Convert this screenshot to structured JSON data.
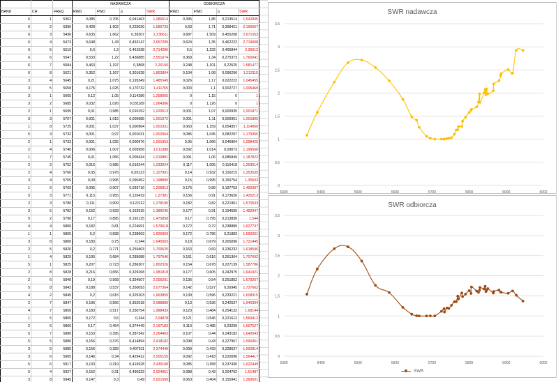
{
  "sheet": {
    "header1": [
      "",
      "",
      "",
      "NADAWCZA",
      "ODBIORCZA"
    ],
    "header2": [
      "BAND",
      "CH",
      "FREQ",
      "RWD",
      "FWD",
      "p",
      "SWR",
      "RWD",
      "FWD",
      "p",
      "SWR"
    ],
    "rows": [
      [
        "6",
        "1",
        "5362",
        "0,085",
        "0,705",
        "0,041463",
        "1,086514",
        "0,395",
        "1,85",
        "0,213514",
        "1,542935"
      ],
      [
        "6",
        "2",
        "5390",
        "0,428",
        "1,902",
        "0,225026",
        "1,580733",
        "0,63",
        "1,71",
        "0,368421",
        "2,166667"
      ],
      [
        "6",
        "3",
        "5436",
        "0,635",
        "1,662",
        "0,38207",
        "2,236611",
        "0,687",
        "1,509",
        "0,455268",
        "2,671553"
      ],
      [
        "6",
        "4",
        "5473",
        "0,648",
        "1,43",
        "0,453147",
        "2,657289",
        "0,624",
        "1,35",
        "0,462222",
        "2,719008"
      ],
      [
        "6",
        "5",
        "5510",
        "0,6",
        "1,3",
        "0,461538",
        "2,714286",
        "0,5",
        "1,232",
        "0,405844",
        "2,36612"
      ],
      [
        "6",
        "6",
        "5547",
        "0,533",
        "1,22",
        "0,436885",
        "2,551674",
        "0,369",
        "1,34",
        "0,275373",
        "1,760041"
      ],
      [
        "6",
        "7",
        "5584",
        "0,463",
        "1,197",
        "0,3868",
        "2,26156",
        "0,248",
        "1,101",
        "0,22525",
        "1,581477"
      ],
      [
        "6",
        "8",
        "5621",
        "0,352",
        "1,167",
        "0,301628",
        "1,863804",
        "0,104",
        "1,08",
        "0,096296",
        "1,213115"
      ],
      [
        "3",
        "4",
        "5645",
        "0,21",
        "1,075",
        "0,195349",
        "1,485549",
        "0,026",
        "1,17",
        "0,022222",
        "1,045455"
      ],
      [
        "3",
        "5",
        "5658",
        "0,175",
        "1,025",
        "0,170732",
        "1,411765",
        "0,003",
        "1,1",
        "0,002727",
        "1,005469"
      ],
      [
        "3",
        "1",
        "5665",
        "0,12",
        "1,05",
        "0,114286",
        "1,258065",
        "0",
        "1,15",
        "0",
        "1"
      ],
      [
        "3",
        "2",
        "5685",
        "0,032",
        "1,026",
        "0,031189",
        "1,064386",
        "0",
        "1,126",
        "0",
        "1"
      ],
      [
        "2",
        "1",
        "5695",
        "0,01",
        "0,985",
        "0,010152",
        "1,020513",
        "0,001",
        "1,07",
        "0,000935",
        "1,001871"
      ],
      [
        "3",
        "3",
        "5707",
        "0,001",
        "1,015",
        "0,000985",
        "1,001972",
        "0,001",
        "1,11",
        "0,000901",
        "1,001805"
      ],
      [
        "1",
        "8",
        "5725",
        "0,001",
        "1,037",
        "0,000964",
        "1,001931",
        "0,063",
        "1,159",
        "0,054357",
        "1,114960"
      ],
      [
        "5",
        "3",
        "5732",
        "0,001",
        "0,97",
        "0,001031",
        "1,002064",
        "0,086",
        "1,045",
        "0,082297",
        "1,179355"
      ],
      [
        "2",
        "1",
        "5733",
        "0,001",
        "1,025",
        "0,000976",
        "1,001953",
        "0,05",
        "1,066",
        "0,046904",
        "1,098425"
      ],
      [
        "2",
        "4",
        "5740",
        "0,006",
        "1,007",
        "0,005958",
        "1,011988",
        "0,092",
        "1,014",
        "0,09073",
        "1,199566"
      ],
      [
        "1",
        "7",
        "5745",
        "0,01",
        "1,056",
        "0,009434",
        "1,019881",
        "0,091",
        "1,06",
        "0,085849",
        "1,187822"
      ],
      [
        "2",
        "2",
        "5752",
        "0,016",
        "0,985",
        "0,016244",
        "1,033024",
        "0,117",
        "1,005",
        "0,116418",
        "1,263514"
      ],
      [
        "2",
        "4",
        "5760",
        "0,05",
        "0,976",
        "0,05123",
        "1,107991",
        "0,14",
        "0,932",
        "0,150215",
        "1,353535"
      ],
      [
        "3",
        "4",
        "5765",
        "0,09",
        "0,995",
        "0,090452",
        "1,198895",
        "0,15",
        "0,995",
        "0,150754",
        "1,35503"
      ],
      [
        "1",
        "6",
        "5769",
        "0,095",
        "0,907",
        "0,093716",
        "1,206813",
        "0,176",
        "0,89",
        "0,197753",
        "1,492997"
      ],
      [
        "5",
        "3",
        "5771",
        "0,115",
        "0,955",
        "0,120419",
        "1,27381",
        "0,156",
        "0,91",
        "0,173626",
        "1,420213"
      ],
      [
        "2",
        "3",
        "5780",
        "0,111",
        "0,909",
        "0,122112",
        "1,278195",
        "0,182",
        "0,82",
        "0,221951",
        "1,570533"
      ],
      [
        "3",
        "5",
        "5782",
        "0,152",
        "0,933",
        "0,162915",
        "1,389245",
        "0,177",
        "0,91",
        "0,194505",
        "1,482947"
      ],
      [
        "5",
        "2",
        "5790",
        "0,17",
        "0,895",
        "0,192125",
        "1,475858",
        "0,17",
        "0,795",
        "0,213836",
        "1,544"
      ],
      [
        "4",
        "4",
        "5800",
        "0,182",
        "0,81",
        "0,224691",
        "1,579618",
        "0,172",
        "0,72",
        "0,238889",
        "1,627737"
      ],
      [
        "1",
        "1",
        "5805",
        "0,2",
        "0,838",
        "0,238663",
        "1,626959",
        "0,172",
        "0,786",
        "0,21883",
        "1,560261"
      ],
      [
        "3",
        "8",
        "5806",
        "0,183",
        "0,75",
        "0,244",
        "1,645503",
        "0,18",
        "0,679",
        "0,265096",
        "1,721445"
      ],
      [
        "2",
        "5",
        "5820",
        "0,2",
        "0,771",
        "0,259403",
        "1,700525",
        "0,163",
        "0,69",
        "0,236232",
        "1,618596"
      ],
      [
        "1",
        "4",
        "5829",
        "0,195",
        "0,684",
        "0,285088",
        "1,797546",
        "0,161",
        "0,616",
        "0,261364",
        "1,707692"
      ],
      [
        "5",
        "1",
        "5825",
        "0,207",
        "0,723",
        "0,286307",
        "1,802326",
        "0,154",
        "0,678",
        "0,227139",
        "1,587786"
      ],
      [
        "2",
        "8",
        "5828",
        "0,216",
        "0,656",
        "0,329268",
        "1,981818",
        "0,177",
        "0,605",
        "0,242975",
        "1,641921"
      ],
      [
        "2",
        "6",
        "5840",
        "0,19",
        "0,568",
        "0,334507",
        "2,005291",
        "0,136",
        "0,54",
        "0,251852",
        "1,673267"
      ],
      [
        "5",
        "8",
        "5843",
        "0,188",
        "0,537",
        "0,350093",
        "2,077364",
        "0,142",
        "0,527",
        "0,26945",
        "1,737662"
      ],
      [
        "4",
        "2",
        "5845",
        "0,2",
        "0,615",
        "0,325203",
        "1,963855",
        "0,139",
        "0,596",
        "0,233221",
        "1,608315"
      ],
      [
        "2",
        "7",
        "5847",
        "0,196",
        "0,556",
        "0,352518",
        "2,088889",
        "0,13",
        "0,536",
        "0,242537",
        "1,640394"
      ],
      [
        "4",
        "7",
        "5850",
        "0,183",
        "0,517",
        "0,330754",
        "1,988439",
        "0,123",
        "0,484",
        "0,254132",
        "1,68144"
      ],
      [
        "1",
        "5",
        "5865",
        "0,172",
        "0,5",
        "0,344",
        "2,04878",
        "0,121",
        "0,546",
        "0,221612",
        "1,569412"
      ],
      [
        "2",
        "6",
        "5866",
        "0,17",
        "0,454",
        "0,374449",
        "2,197183",
        "0,113",
        "0,485",
        "0,23299",
        "1,607527"
      ],
      [
        "5",
        "7",
        "5880",
        "0,153",
        "0,395",
        "0,387342",
        "2,264463",
        "0,107",
        "0,44",
        "0,243182",
        "1,642643"
      ],
      [
        "5",
        "5",
        "5886",
        "0,156",
        "0,376",
        "0,414894",
        "2,418182",
        "0,098",
        "0,43",
        "0,227907",
        "1,590361"
      ],
      [
        "3",
        "5",
        "5885",
        "0,156",
        "0,383",
        "0,407311",
        "2,374449",
        "0,099",
        "0,433",
        "0,228637",
        "1,592814"
      ],
      [
        "3",
        "6",
        "5905",
        "0,146",
        "0,34",
        "0,429412",
        "2,505155",
        "0,092",
        "0,418",
        "0,220096",
        "1,564417"
      ],
      [
        "5",
        "6",
        "5917",
        "0,133",
        "0,319",
        "0,416928",
        "2,430108",
        "0,085",
        "0,358",
        "0,237430",
        "1,622449"
      ],
      [
        "5",
        "4",
        "5927",
        "0,152",
        "0,31",
        "0,490323",
        "2,924051",
        "0,088",
        "0,43",
        "0,204762",
        "1,51487"
      ],
      [
        "3",
        "8",
        "5945",
        "0,147",
        "0,3",
        "0,49",
        "2,921569",
        "0,063",
        "0,404",
        "0,155941",
        "1,369501"
      ]
    ]
  },
  "charts": [
    {
      "id": "chart1",
      "title": "SWR nadawcza",
      "color": "#ffc000",
      "show_legend": false,
      "x_ticks": [
        "5300",
        "5400",
        "5500",
        "5600",
        "5700",
        "5800",
        "5900",
        "6000"
      ],
      "y_ticks": [
        "0",
        "0,5",
        "1",
        "1,5",
        "2",
        "2,5",
        "3",
        "3,5"
      ]
    },
    {
      "id": "chart2",
      "title": "SWR odbiorcza",
      "color": "#9c4a12",
      "show_legend": true,
      "legend_label": "SWR",
      "x_ticks": [
        "5300",
        "5400",
        "5500",
        "5600",
        "5700",
        "5800",
        "5900",
        "6000"
      ],
      "y_ticks": [
        "0",
        "0,5",
        "1",
        "1,5",
        "2",
        "2,5",
        "3",
        "3,5"
      ]
    }
  ],
  "chart_data": [
    {
      "type": "scatter",
      "title": "SWR nadawcza",
      "xlabel": "",
      "ylabel": "",
      "xlim": [
        5300,
        6000
      ],
      "ylim": [
        0,
        3.5
      ],
      "grid": true,
      "x": [
        5362,
        5390,
        5436,
        5473,
        5510,
        5547,
        5584,
        5621,
        5645,
        5658,
        5665,
        5685,
        5695,
        5707,
        5725,
        5732,
        5733,
        5740,
        5745,
        5752,
        5760,
        5765,
        5769,
        5771,
        5780,
        5782,
        5790,
        5800,
        5805,
        5806,
        5820,
        5825,
        5828,
        5829,
        5840,
        5843,
        5845,
        5847,
        5850,
        5865,
        5866,
        5880,
        5885,
        5886,
        5905,
        5917,
        5927,
        5945
      ],
      "y": [
        1.087,
        1.581,
        2.237,
        2.657,
        2.714,
        2.552,
        2.262,
        1.864,
        1.486,
        1.412,
        1.258,
        1.064,
        1.021,
        1.002,
        1.002,
        1.002,
        1.002,
        1.012,
        1.02,
        1.033,
        1.108,
        1.199,
        1.207,
        1.274,
        1.278,
        1.389,
        1.476,
        1.58,
        1.627,
        1.646,
        1.701,
        1.802,
        1.982,
        1.798,
        2.005,
        2.077,
        1.964,
        2.089,
        1.988,
        2.049,
        2.197,
        2.264,
        2.374,
        2.418,
        2.505,
        2.43,
        2.924,
        2.922
      ]
    },
    {
      "type": "scatter",
      "title": "SWR odbiorcza",
      "xlabel": "",
      "ylabel": "",
      "xlim": [
        5300,
        6000
      ],
      "ylim": [
        0,
        3.5
      ],
      "grid": true,
      "series": [
        {
          "name": "SWR"
        }
      ],
      "x": [
        5362,
        5390,
        5436,
        5473,
        5510,
        5547,
        5584,
        5621,
        5645,
        5658,
        5665,
        5685,
        5695,
        5707,
        5725,
        5732,
        5733,
        5740,
        5745,
        5752,
        5760,
        5765,
        5769,
        5771,
        5780,
        5782,
        5790,
        5800,
        5805,
        5806,
        5820,
        5825,
        5828,
        5829,
        5840,
        5843,
        5845,
        5847,
        5850,
        5865,
        5866,
        5880,
        5885,
        5886,
        5905,
        5917,
        5927,
        5945
      ],
      "y": [
        1.543,
        2.167,
        2.672,
        2.719,
        2.366,
        1.76,
        1.581,
        1.213,
        1.045,
        1.005,
        1.0,
        1.0,
        1.002,
        1.002,
        1.115,
        1.179,
        1.098,
        1.2,
        1.188,
        1.264,
        1.354,
        1.355,
        1.493,
        1.42,
        1.571,
        1.483,
        1.544,
        1.628,
        1.56,
        1.721,
        1.619,
        1.588,
        1.642,
        1.708,
        1.673,
        1.738,
        1.608,
        1.64,
        1.681,
        1.569,
        1.608,
        1.643,
        1.593,
        1.59,
        1.564,
        1.622,
        1.515,
        1.37
      ]
    }
  ]
}
